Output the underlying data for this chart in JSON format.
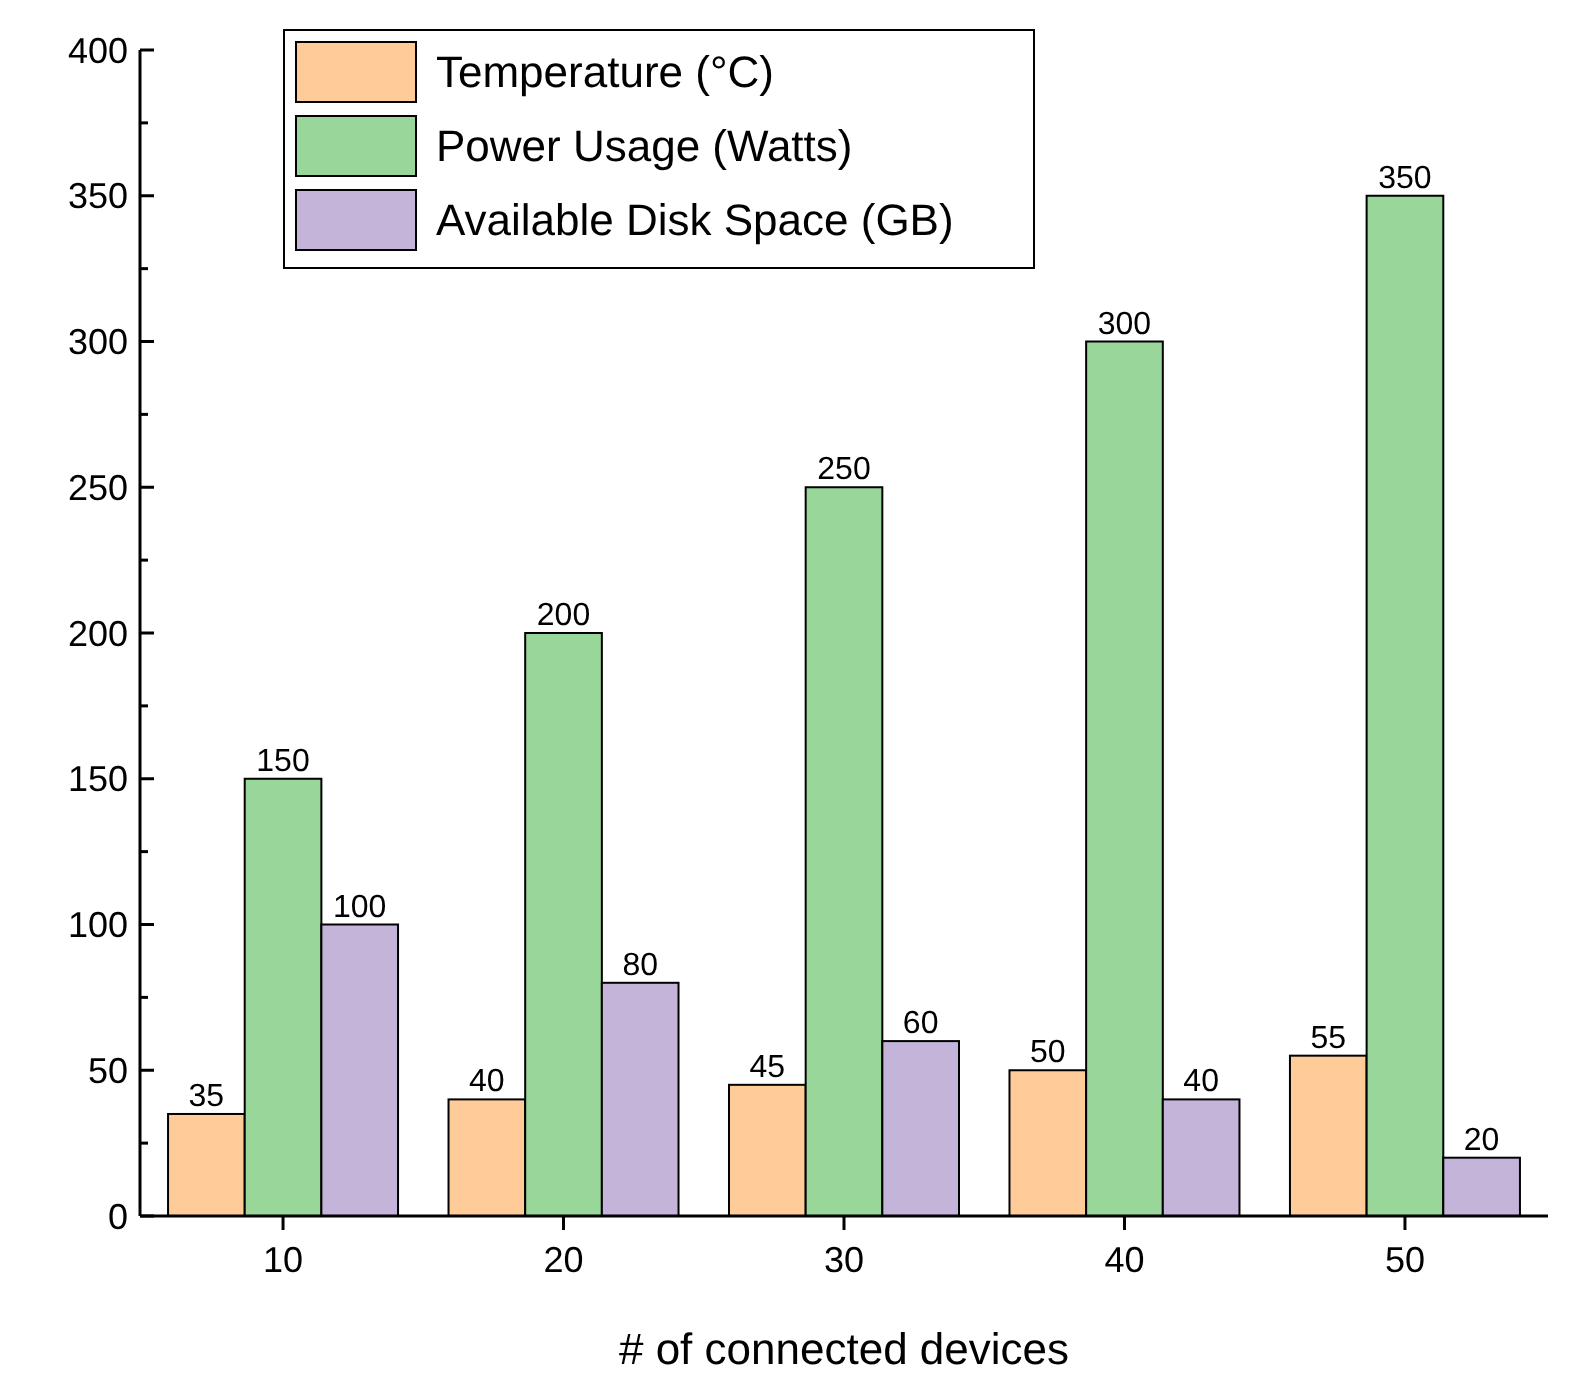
{
  "chart_data": {
    "type": "bar",
    "xlabel": "# of connected devices",
    "categories": [
      "10",
      "20",
      "30",
      "40",
      "50"
    ],
    "series": [
      {
        "name": "Temperature (°C)",
        "color": "#ffcc99",
        "values": [
          35,
          40,
          45,
          50,
          55
        ]
      },
      {
        "name": "Power Usage (Watts)",
        "color": "#99d699",
        "values": [
          150,
          200,
          250,
          300,
          350
        ]
      },
      {
        "name": "Available Disk Space (GB)",
        "color": "#c5b4d9",
        "values": [
          100,
          80,
          60,
          40,
          20
        ]
      }
    ],
    "ylim": [
      0,
      400
    ],
    "yticks": [
      0,
      {
        "value": 25,
        "label": null
      },
      50,
      {
        "value": 75,
        "label": null
      },
      100,
      {
        "value": 125,
        "label": null
      },
      150,
      {
        "value": 175,
        "label": null
      },
      200,
      {
        "value": 225,
        "label": null
      },
      250,
      {
        "value": 275,
        "label": null
      },
      300,
      {
        "value": 325,
        "label": null
      },
      350,
      {
        "value": 375,
        "label": null
      },
      400
    ],
    "data_labels": true,
    "legend": "top left",
    "grid": false
  }
}
